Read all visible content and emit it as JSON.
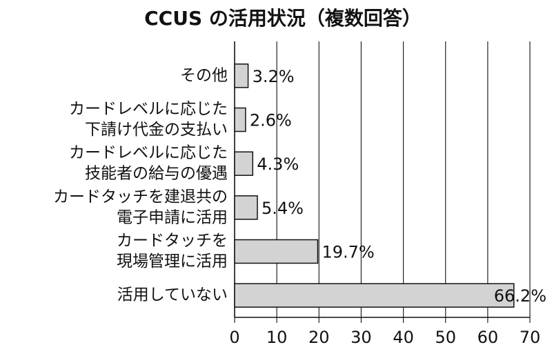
{
  "chart_data": {
    "type": "bar",
    "orientation": "horizontal",
    "title": "CCUS の活用状況（複数回答）",
    "categories": [
      [
        "その他"
      ],
      [
        "カードレベルに応じた",
        "下請け代金の支払い"
      ],
      [
        "カードレベルに応じた",
        "技能者の給与の優遇"
      ],
      [
        "カードタッチを建退共の",
        "電子申請に活用"
      ],
      [
        "カードタッチを",
        "現場管理に活用"
      ],
      [
        "活用していない"
      ]
    ],
    "values": [
      3.2,
      2.6,
      4.3,
      5.4,
      19.7,
      66.2
    ],
    "value_labels": [
      "3.2%",
      "2.6%",
      "4.3%",
      "5.4%",
      "19.7%",
      "66.2%"
    ],
    "color": "#d3d3d3",
    "xlim": [
      0,
      70
    ],
    "xticks": [
      0,
      10,
      20,
      30,
      40,
      50,
      60,
      70
    ],
    "grid": true
  }
}
